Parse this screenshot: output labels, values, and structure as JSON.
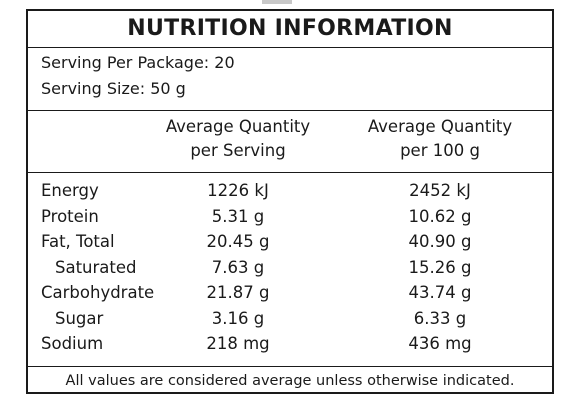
{
  "title": "NUTRITION INFORMATION",
  "serving": {
    "per_package": "Serving Per Package: 20",
    "size": "Serving Size: 50 g"
  },
  "columns": {
    "per_serving": [
      "Average Quantity",
      "per Serving"
    ],
    "per_100g": [
      "Average Quantity",
      "per 100 g"
    ]
  },
  "rows": [
    {
      "label": "Energy",
      "per_serving": "1226 kJ",
      "per_100g": "2452 kJ"
    },
    {
      "label": "Protein",
      "per_serving": "5.31 g",
      "per_100g": "10.62 g"
    },
    {
      "label": "Fat, Total",
      "per_serving": "20.45 g",
      "per_100g": "40.90 g"
    },
    {
      "label": "Saturated",
      "per_serving": "7.63 g",
      "per_100g": "15.26 g"
    },
    {
      "label": "Carbohydrate",
      "per_serving": "21.87 g",
      "per_100g": "43.74 g"
    },
    {
      "label": "Sugar",
      "per_serving": "3.16 g",
      "per_100g": "6.33 g"
    },
    {
      "label": "Sodium",
      "per_serving": "218 mg",
      "per_100g": "436 mg"
    }
  ],
  "footnote": "All values are considered average unless otherwise indicated."
}
